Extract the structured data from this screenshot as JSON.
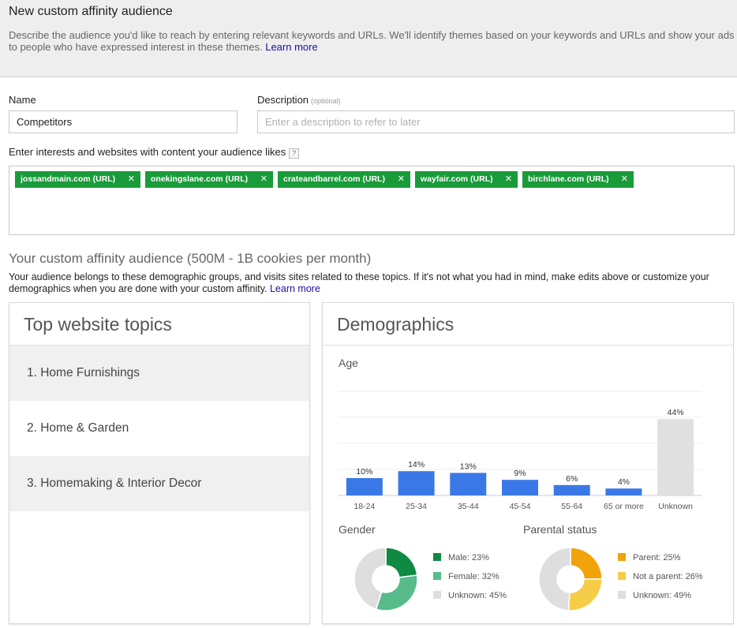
{
  "header": {
    "title": "New custom affinity audience",
    "description": "Describe the audience you'd like to reach by entering relevant keywords and URLs. We'll identify themes based on your keywords and URLs and show your ads to people who have expressed interest in these themes.",
    "learn_more": "Learn more"
  },
  "form": {
    "name_label": "Name",
    "name_value": "Competitors",
    "description_label": "Description",
    "description_optional": "(optional)",
    "description_placeholder": "Enter a description to refer to later",
    "interests_label": "Enter interests and websites with content your audience likes",
    "help_icon": "?",
    "tags": [
      {
        "label": "jossandmain.com (URL)"
      },
      {
        "label": "onekingslane.com (URL)"
      },
      {
        "label": "crateandbarrel.com (URL)"
      },
      {
        "label": "wayfair.com (URL)"
      },
      {
        "label": "birchlane.com (URL)"
      }
    ],
    "tag_remove_glyph": "✕"
  },
  "audience": {
    "title": "Your custom affinity audience (500M - 1B cookies per month)",
    "description": "Your audience belongs to these demographic groups, and visits sites related to these topics. If it's not what you had in mind, make edits above or customize your demographics when you are done with your custom affinity.",
    "learn_more": "Learn more"
  },
  "topics": {
    "title": "Top website topics",
    "items": [
      {
        "label": "1. Home Furnishings"
      },
      {
        "label": "2. Home & Garden"
      },
      {
        "label": "3. Homemaking & Interior Decor"
      }
    ]
  },
  "demographics": {
    "title": "Demographics",
    "age_label": "Age",
    "gender_label": "Gender",
    "parental_label": "Parental status",
    "gender_legend": [
      {
        "label": "Male: 23%",
        "color": "#0f8a43"
      },
      {
        "label": "Female: 32%",
        "color": "#57bb8a"
      },
      {
        "label": "Unknown: 45%",
        "color": "#dedede"
      }
    ],
    "parental_legend": [
      {
        "label": "Parent: 25%",
        "color": "#f0a30a"
      },
      {
        "label": "Not a parent: 26%",
        "color": "#f6cd48"
      },
      {
        "label": "Unknown: 49%",
        "color": "#dedede"
      }
    ]
  },
  "chart_data": [
    {
      "type": "bar",
      "title": "Age",
      "categories": [
        "18-24",
        "25-34",
        "35-44",
        "45-54",
        "55-64",
        "65 or more",
        "Unknown"
      ],
      "values": [
        10,
        14,
        13,
        9,
        6,
        4,
        44
      ],
      "labels": [
        "10%",
        "14%",
        "13%",
        "9%",
        "6%",
        "4%",
        "44%"
      ],
      "colors": [
        "#3b78e7",
        "#3b78e7",
        "#3b78e7",
        "#3b78e7",
        "#3b78e7",
        "#3b78e7",
        "#e0e0e0"
      ],
      "ylim": [
        0,
        60
      ],
      "grid": true
    },
    {
      "type": "pie",
      "title": "Gender",
      "categories": [
        "Male",
        "Female",
        "Unknown"
      ],
      "values": [
        23,
        32,
        45
      ],
      "colors": [
        "#0f8a43",
        "#57bb8a",
        "#dedede"
      ]
    },
    {
      "type": "pie",
      "title": "Parental status",
      "categories": [
        "Parent",
        "Not a parent",
        "Unknown"
      ],
      "values": [
        25,
        26,
        49
      ],
      "colors": [
        "#f0a30a",
        "#f6cd48",
        "#dedede"
      ]
    }
  ]
}
